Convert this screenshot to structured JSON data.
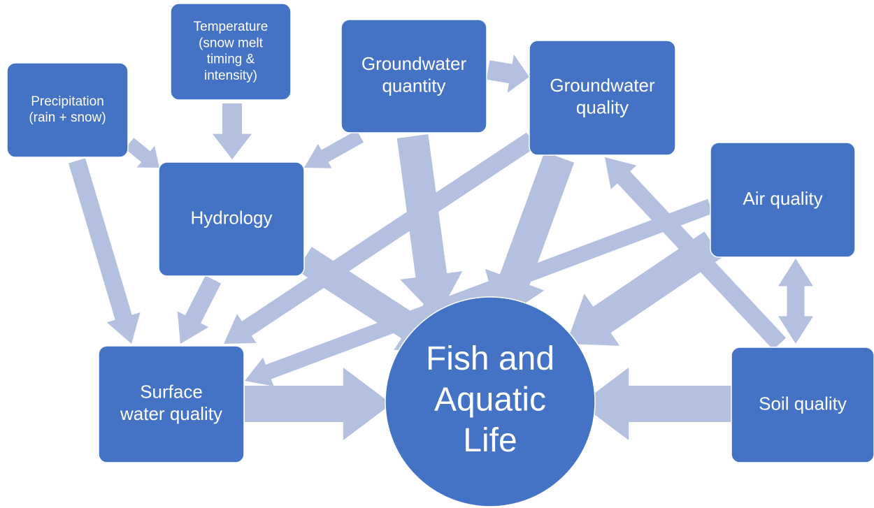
{
  "nodes": [
    {
      "lines": [
        "Precipitation",
        "(rain + snow)"
      ]
    },
    {
      "lines": [
        "Temperature",
        "(snow melt",
        "timing &",
        "intensity)"
      ]
    },
    {
      "lines": [
        "Groundwater",
        "quantity"
      ]
    },
    {
      "lines": [
        "Groundwater",
        "quality"
      ]
    },
    {
      "lines": [
        "Hydrology"
      ]
    },
    {
      "lines": [
        "Air quality"
      ]
    },
    {
      "lines": [
        "Surface",
        "water quality"
      ]
    },
    {
      "lines": [
        "Soil quality"
      ]
    },
    {
      "lines": [
        "Fish and",
        "Aquatic",
        "Life"
      ]
    }
  ]
}
